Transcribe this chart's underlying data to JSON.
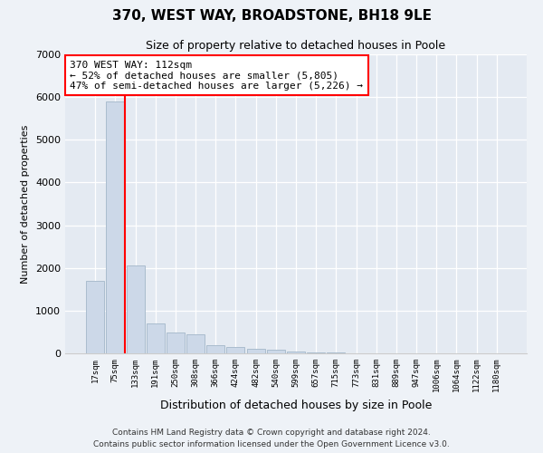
{
  "title1": "370, WEST WAY, BROADSTONE, BH18 9LE",
  "title2": "Size of property relative to detached houses in Poole",
  "xlabel": "Distribution of detached houses by size in Poole",
  "ylabel": "Number of detached properties",
  "bar_labels": [
    "17sqm",
    "75sqm",
    "133sqm",
    "191sqm",
    "250sqm",
    "308sqm",
    "366sqm",
    "424sqm",
    "482sqm",
    "540sqm",
    "599sqm",
    "657sqm",
    "715sqm",
    "773sqm",
    "831sqm",
    "889sqm",
    "947sqm",
    "1006sqm",
    "1064sqm",
    "1122sqm",
    "1180sqm"
  ],
  "bar_heights": [
    1700,
    5900,
    2050,
    700,
    480,
    450,
    200,
    150,
    110,
    80,
    50,
    30,
    20,
    5,
    3,
    2,
    1,
    1,
    1,
    1,
    1
  ],
  "bar_color": "#ccd8e8",
  "bar_edge_color": "#aabcce",
  "vline_color": "red",
  "annotation_line1": "370 WEST WAY: 112sqm",
  "annotation_line2": "← 52% of detached houses are smaller (5,805)",
  "annotation_line3": "47% of semi-detached houses are larger (5,226) →",
  "annotation_box_color": "white",
  "annotation_box_edge": "red",
  "ylim": [
    0,
    7000
  ],
  "yticks": [
    0,
    1000,
    2000,
    3000,
    4000,
    5000,
    6000,
    7000
  ],
  "footnote1": "Contains HM Land Registry data © Crown copyright and database right 2024.",
  "footnote2": "Contains public sector information licensed under the Open Government Licence v3.0.",
  "bg_color": "#eef2f7",
  "plot_bg_color": "#e4eaf2"
}
